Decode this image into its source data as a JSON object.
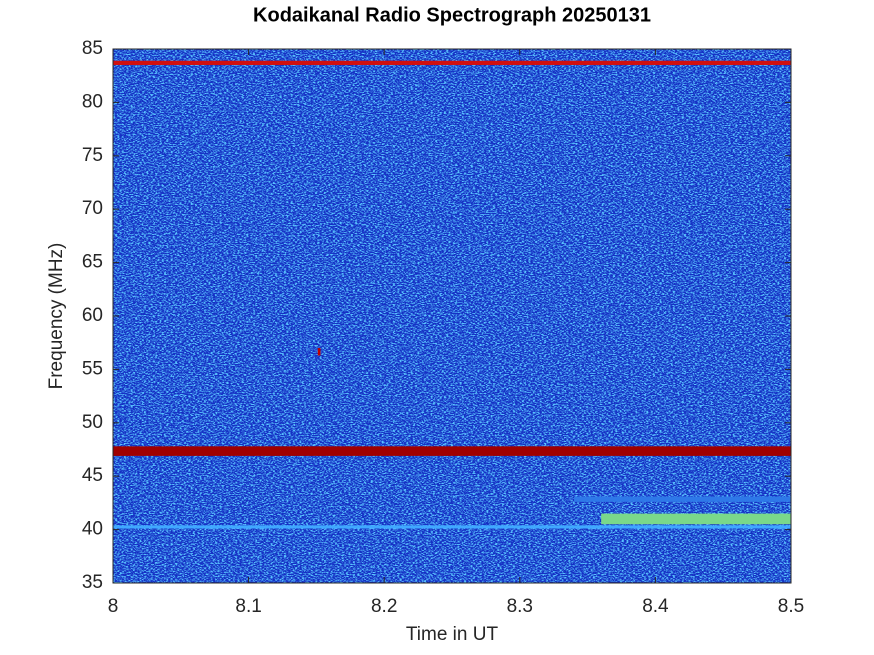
{
  "chart_data": {
    "type": "spectrogram",
    "title": "Kodaikanal Radio Spectrograph  20250131",
    "x_label": "Time in UT",
    "y_label": "Frequency (MHz)",
    "xlim": [
      8,
      8.5
    ],
    "xticks": [
      8,
      8.1,
      8.2,
      8.3,
      8.4,
      8.5
    ],
    "ylim": [
      35,
      85
    ],
    "yticks": [
      35,
      40,
      45,
      50,
      55,
      60,
      65,
      70,
      75,
      80,
      85
    ],
    "background": "#1530c4",
    "bands": [
      {
        "x0": 8,
        "x1": 8.5,
        "y0": 83.5,
        "y1": 83.9,
        "color": "#d01010"
      },
      {
        "x0": 8,
        "x1": 8.5,
        "y0": 46.9,
        "y1": 47.8,
        "color": "#a00000"
      },
      {
        "x0": 8,
        "x1": 8.5,
        "y0": 40.1,
        "y1": 40.4,
        "color": "#40a8ff"
      },
      {
        "x0": 8.36,
        "x1": 8.5,
        "y0": 40.5,
        "y1": 41.5,
        "color": "#7ad88a"
      },
      {
        "x0": 8.34,
        "x1": 8.5,
        "y0": 42.6,
        "y1": 43.1,
        "color": "#2e78e8"
      },
      {
        "x0": 8.151,
        "x1": 8.153,
        "y0": 56.3,
        "y1": 57,
        "color": "#c00000"
      }
    ]
  }
}
